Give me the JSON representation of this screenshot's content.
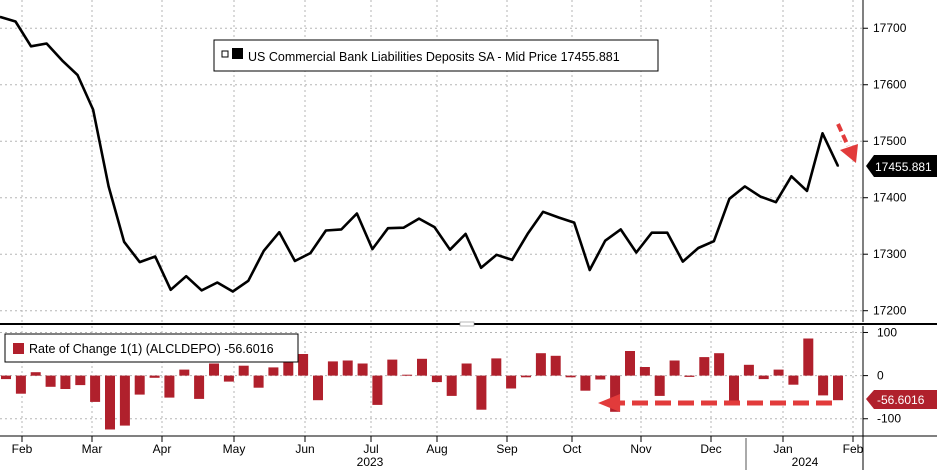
{
  "colors": {
    "line": "#000000",
    "bar": "#b0202c",
    "annotation": "#e23b3b",
    "grid": "#b5b5b5",
    "separator": "#000000"
  },
  "chart_data": [
    {
      "type": "line",
      "legend": "US Commercial Bank Liabilities Deposits SA - Mid Price 17455.881",
      "legend_icon": "square-icon",
      "last_value_label": "17455.881",
      "y_ticks": [
        "17200",
        "17300",
        "17400",
        "17500",
        "17600",
        "17700"
      ],
      "ylim": [
        17180,
        17750
      ],
      "grid": true,
      "legend_position": "top-center",
      "series": [
        {
          "values": [
            17720,
            17712,
            17668,
            17673,
            17643,
            17617,
            17556,
            17420,
            17322,
            17286,
            17296,
            17237,
            17261,
            17236,
            17250,
            17234,
            17253,
            17306,
            17339,
            17288,
            17302,
            17342,
            17344,
            17372,
            17309,
            17346,
            17347,
            17363,
            17348,
            17308,
            17336,
            17276,
            17299,
            17290,
            17336,
            17375,
            17365,
            17356,
            17272,
            17324,
            17344,
            17303,
            17338,
            17338,
            17287,
            17311,
            17323,
            17398,
            17420,
            17402,
            17392,
            17438,
            17412,
            17514,
            17456
          ]
        }
      ],
      "annotation": "red dashed arrow pointing down to last value"
    },
    {
      "type": "bar",
      "legend": "Rate of Change 1(1) (ALCLDEPO) -56.6016",
      "legend_icon": "square-icon",
      "last_value_label": "-56.6016",
      "y_ticks": [
        "100",
        "0",
        "-100"
      ],
      "ylim": [
        -140,
        115
      ],
      "grid": true,
      "legend_position": "top-left",
      "series": [
        {
          "values": [
            -8,
            -42,
            8,
            -26,
            -31,
            -22,
            -61,
            -125,
            -116,
            -44,
            -5,
            -51,
            14,
            -54,
            28,
            -14,
            23,
            -28,
            19,
            53,
            50,
            -57,
            33,
            35,
            28,
            -68,
            37,
            2,
            39,
            -15,
            -47,
            28,
            -79,
            40,
            -30,
            -4,
            52,
            46,
            -4,
            -35,
            -9,
            -84,
            57,
            20,
            -47,
            35,
            -3,
            43,
            52,
            -62,
            25,
            -8,
            14,
            -21,
            86,
            -46,
            -57
          ]
        }
      ],
      "annotation": "red dashed arrow pointing left along the baseline"
    }
  ],
  "x_axis": {
    "months": [
      "Feb",
      "Mar",
      "Apr",
      "May",
      "Jun",
      "Jul",
      "Aug",
      "Sep",
      "Oct",
      "Nov",
      "Dec",
      "Jan",
      "Feb"
    ],
    "years": [
      "2023",
      "2024"
    ]
  }
}
